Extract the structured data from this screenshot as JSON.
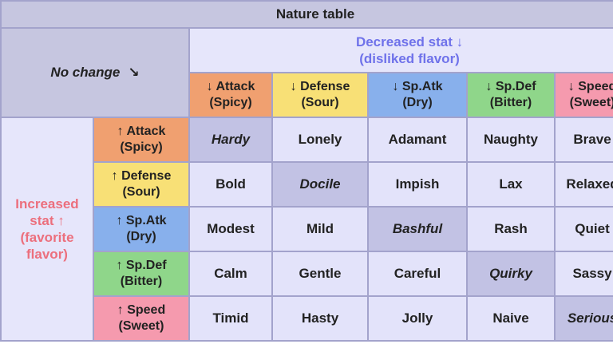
{
  "title": "Nature table",
  "no_change": {
    "label": "No change",
    "arrow": "↘"
  },
  "decreased_header": {
    "line1": "Decreased stat ↓",
    "line2": "(disliked flavor)"
  },
  "increased_header": {
    "line1": "Increased",
    "line2": "stat ↑",
    "line3": "(favorite",
    "line4": "flavor)"
  },
  "columns": [
    {
      "stat": "↓ Attack",
      "flavor": "(Spicy)"
    },
    {
      "stat": "↓ Defense",
      "flavor": "(Sour)"
    },
    {
      "stat": "↓ Sp.Atk",
      "flavor": "(Dry)"
    },
    {
      "stat": "↓ Sp.Def",
      "flavor": "(Bitter)"
    },
    {
      "stat": "↓ Speed",
      "flavor": "(Sweet)"
    }
  ],
  "rows": [
    {
      "stat": "↑ Attack",
      "flavor": "(Spicy)",
      "natures": [
        "Hardy",
        "Lonely",
        "Adamant",
        "Naughty",
        "Brave"
      ]
    },
    {
      "stat": "↑ Defense",
      "flavor": "(Sour)",
      "natures": [
        "Bold",
        "Docile",
        "Impish",
        "Lax",
        "Relaxed"
      ]
    },
    {
      "stat": "↑ Sp.Atk",
      "flavor": "(Dry)",
      "natures": [
        "Modest",
        "Mild",
        "Bashful",
        "Rash",
        "Quiet"
      ]
    },
    {
      "stat": "↑ Sp.Def",
      "flavor": "(Bitter)",
      "natures": [
        "Calm",
        "Gentle",
        "Careful",
        "Quirky",
        "Sassy"
      ]
    },
    {
      "stat": "↑ Speed",
      "flavor": "(Sweet)",
      "natures": [
        "Timid",
        "Hasty",
        "Jolly",
        "Naive",
        "Serious"
      ]
    }
  ],
  "colors": {
    "attack": "#f0a070",
    "defense": "#f8e076",
    "sp_atk": "#88b0ec",
    "sp_def": "#8fd68a",
    "speed": "#f59aae",
    "cell": "#e3e3fa",
    "neutral_cell": "#c2c2e4",
    "decreased_text": "#6f72ea",
    "increased_text": "#ec6f7d"
  }
}
